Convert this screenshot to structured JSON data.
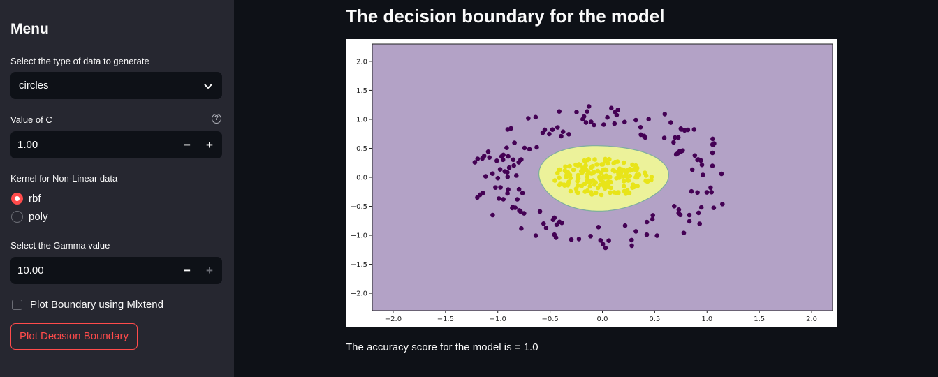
{
  "sidebar": {
    "title": "Menu",
    "data_type_label": "Select the type of data to generate",
    "data_type_value": "circles",
    "c_label": "Value of C",
    "c_value": "1.00",
    "kernel_label": "Kernel for Non-Linear data",
    "kernel_options": [
      {
        "label": "rbf",
        "selected": true
      },
      {
        "label": "poly",
        "selected": false
      }
    ],
    "gamma_label": "Select the Gamma value",
    "gamma_value": "10.00",
    "minus": "−",
    "plus": "+",
    "help": "?",
    "mlxtend_label": "Plot Boundary using Mlxtend",
    "mlxtend_checked": false,
    "button_label": "Plot Decision Boundary",
    "accent_color": "#ff4b4b"
  },
  "main": {
    "title": "The decision boundary for the model",
    "accuracy_text": "The accuracy score for the model is = 1.0"
  },
  "chart_data": {
    "type": "scatter",
    "title": "",
    "xlabel": "",
    "ylabel": "",
    "xlim": [
      -2.2,
      2.2
    ],
    "ylim": [
      -2.3,
      2.3
    ],
    "xticks": [
      "−2.0",
      "−1.5",
      "−1.0",
      "−0.5",
      "0.0",
      "0.5",
      "1.0",
      "1.5",
      "2.0"
    ],
    "yticks": [
      "2.0",
      "1.5",
      "1.0",
      "0.5",
      "0.0",
      "−0.5",
      "−1.0",
      "−1.5",
      "−2.0"
    ],
    "xtick_values": [
      -2.0,
      -1.5,
      -1.0,
      -0.5,
      0.0,
      0.5,
      1.0,
      1.5,
      2.0
    ],
    "ytick_values": [
      2.0,
      1.5,
      1.0,
      0.5,
      0.0,
      -0.5,
      -1.0,
      -1.5,
      -2.0
    ],
    "grid": false,
    "background_region_color": "#b3a2c6",
    "inner_region_color": "#ecf29a",
    "boundary_color": "#7fae9e",
    "decision_region": {
      "center": [
        0.0,
        0.0
      ],
      "radius_x": 0.6,
      "radius_y": 0.58
    },
    "series": [
      {
        "class": 0,
        "color": "#440154",
        "distribution": "ring",
        "inner_radius": 0.8,
        "outer_radius": 1.25,
        "count": 160
      },
      {
        "class": 1,
        "color": "#e8e419",
        "distribution": "disc",
        "radius": 0.38,
        "count": 170
      }
    ]
  }
}
